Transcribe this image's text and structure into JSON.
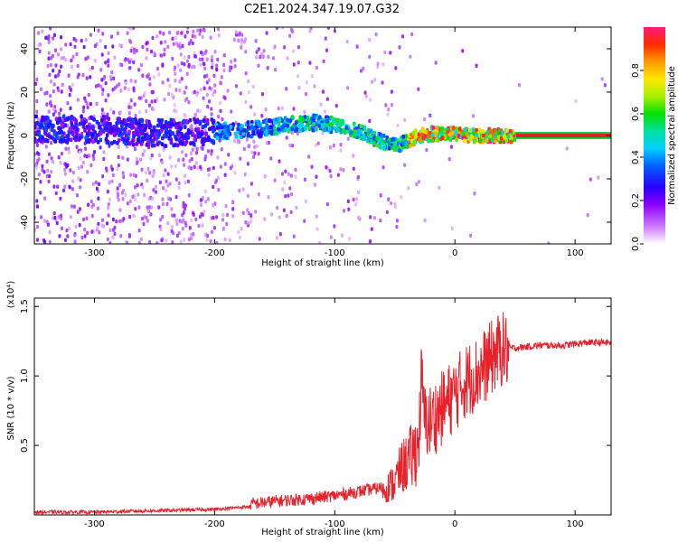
{
  "title": "C2E1.2024.347.19.07.G32",
  "colors": {
    "snr_line": "#e8202a",
    "band_inner": "#e21f1f",
    "band_outer": "#00c43a"
  },
  "chart_data": [
    {
      "type": "heatmap",
      "title": "C2E1.2024.347.19.07.G32",
      "xlabel": "Height of straight line (km)",
      "ylabel": "Frequency (Hz)",
      "xlim": [
        -350,
        130
      ],
      "ylim": [
        -50,
        50
      ],
      "xticks": [
        -300,
        -200,
        -100,
        0,
        100
      ],
      "yticks": [
        -40,
        -20,
        0,
        20,
        40
      ],
      "colorbar": {
        "label": "Normalized spectral amplitude",
        "range": [
          0,
          1
        ],
        "ticks": [
          "0.0",
          "0.2",
          "0.4",
          "0.6",
          "0.8"
        ],
        "tick_values": [
          0.0,
          0.2,
          0.4,
          0.6,
          0.8
        ]
      },
      "ridge": {
        "description_points_x": [
          -350,
          -300,
          -250,
          -200,
          -160,
          -140,
          -120,
          -100,
          -80,
          -60,
          -45,
          -30,
          -10,
          0,
          10,
          130
        ],
        "description_points_freq": [
          3,
          3,
          1,
          2,
          3,
          5,
          6,
          5,
          2,
          -3,
          -4,
          0,
          1,
          1,
          0,
          0
        ],
        "peak_amplitude": 1.0
      },
      "grid": false
    },
    {
      "type": "line",
      "xlabel": "Height of straight line (km)",
      "ylabel": "SNR (10 * v/v)",
      "y_multiplier": "(x10⁴)",
      "xlim": [
        -350,
        130
      ],
      "ylim": [
        0,
        1.56
      ],
      "xticks": [
        -300,
        -200,
        -100,
        0,
        100
      ],
      "yticks": [
        0.5,
        1.0,
        1.5
      ],
      "ytick_labels": [
        "0.5",
        "1.0",
        "1.5"
      ],
      "series": [
        {
          "x": [
            -350,
            -300,
            -250,
            -200,
            -170,
            -150,
            -120,
            -100,
            -80,
            -60,
            -50,
            -45,
            -40,
            -35,
            -30,
            -28,
            -25,
            -20,
            -10,
            0,
            10,
            20,
            30,
            35,
            40,
            45,
            50,
            70,
            90,
            110,
            130
          ],
          "values": [
            0.02,
            0.02,
            0.03,
            0.04,
            0.06,
            0.08,
            0.1,
            0.12,
            0.15,
            0.18,
            0.25,
            0.35,
            0.4,
            0.45,
            0.55,
            1.0,
            0.7,
            0.7,
            0.8,
            0.9,
            1.0,
            1.05,
            1.15,
            1.2,
            1.22,
            1.2,
            1.2,
            1.22,
            1.22,
            1.24,
            1.24
          ]
        }
      ],
      "grid": false
    }
  ]
}
